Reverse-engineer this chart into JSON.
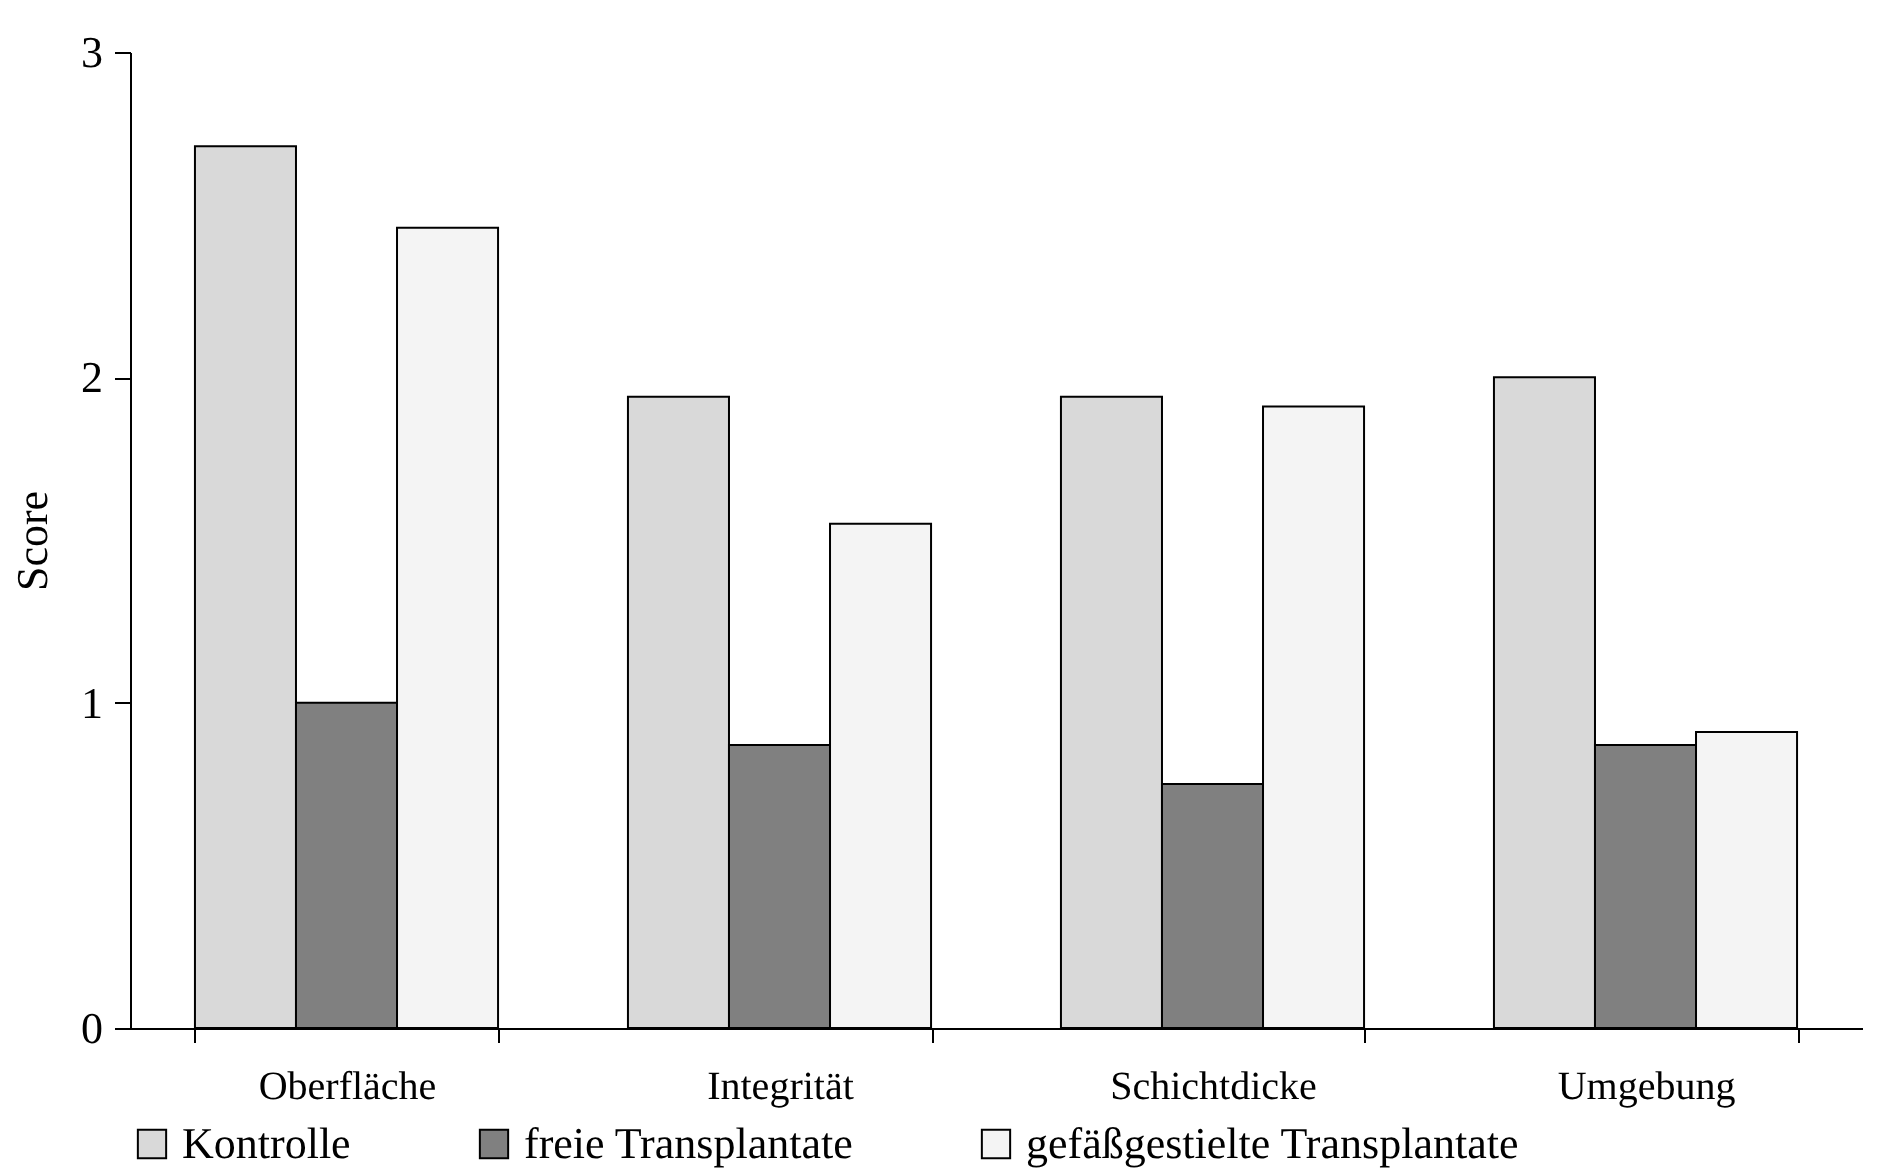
{
  "chart_data": {
    "type": "bar",
    "ylabel": "Score",
    "categories": [
      "Oberfläche",
      "Integrität",
      "Schichtdicke",
      "Umgebung"
    ],
    "series": [
      {
        "name": "Kontrolle",
        "color": "#d9d9d9",
        "values": [
          2.71,
          1.94,
          1.94,
          2.0
        ]
      },
      {
        "name": "freie Transplantate",
        "color": "#808080",
        "values": [
          1.0,
          0.87,
          0.75,
          0.87
        ]
      },
      {
        "name": "gefäßgestielte Transplantate",
        "color": "#f4f4f4",
        "values": [
          2.46,
          1.55,
          1.91,
          0.91
        ]
      }
    ],
    "ylim": [
      0,
      3
    ],
    "yticks": [
      0,
      1,
      2,
      3
    ],
    "grid": false,
    "legend": "bottom"
  }
}
